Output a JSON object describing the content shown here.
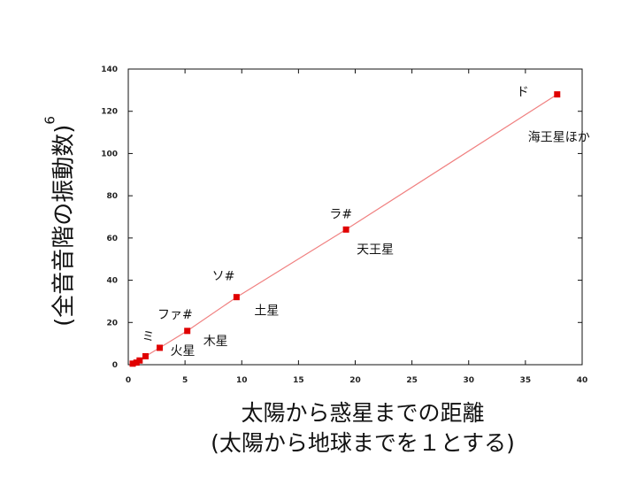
{
  "chart_data": {
    "type": "scatter",
    "xlabel_line1": "太陽から惑星までの距離",
    "xlabel_line2": "(太陽から地球までを１とする)",
    "ylabel": "(全音音階の振動数)",
    "ylabel_superscript": "6",
    "xlim": [
      0,
      40
    ],
    "ylim": [
      0,
      140
    ],
    "x_ticks": [
      0,
      5,
      10,
      15,
      20,
      25,
      30,
      35,
      40
    ],
    "y_ticks": [
      0,
      20,
      40,
      60,
      80,
      100,
      120,
      140
    ],
    "grid": false,
    "line_color": "#f08080",
    "marker_color": "#e00000",
    "series": [
      {
        "x": [
          0.39,
          0.72,
          1.0,
          1.52,
          2.77,
          5.2,
          9.54,
          19.19,
          37.8
        ],
        "y": [
          0.5,
          1.0,
          2.0,
          4.0,
          8.0,
          16.0,
          32.0,
          64.0,
          128.0
        ]
      }
    ],
    "annotations": [
      {
        "text": "ミ",
        "x": 2.77,
        "y": 8,
        "anchor": "end",
        "dx": -6,
        "dy": -8
      },
      {
        "text": "火星",
        "x": 2.77,
        "y": 8,
        "anchor": "start",
        "dx": 12,
        "dy": 8
      },
      {
        "text": "ファ#",
        "x": 5.2,
        "y": 16,
        "anchor": "end",
        "dx": 6,
        "dy": -14
      },
      {
        "text": "木星",
        "x": 5.2,
        "y": 16,
        "anchor": "start",
        "dx": 18,
        "dy": 16
      },
      {
        "text": "ソ#",
        "x": 9.54,
        "y": 32,
        "anchor": "end",
        "dx": -2,
        "dy": -19
      },
      {
        "text": "土星",
        "x": 9.54,
        "y": 32,
        "anchor": "start",
        "dx": 20,
        "dy": 20
      },
      {
        "text": "ラ#",
        "x": 19.19,
        "y": 64,
        "anchor": "end",
        "dx": 7,
        "dy": -13
      },
      {
        "text": "天王星",
        "x": 19.19,
        "y": 64,
        "anchor": "start",
        "dx": 12,
        "dy": 27
      },
      {
        "text": "ド",
        "x": 37.8,
        "y": 128,
        "anchor": "end",
        "dx": -32,
        "dy": 2
      },
      {
        "text": "海王星ほか",
        "x": 37.8,
        "y": 128,
        "anchor": "start",
        "dx": -33,
        "dy": 53
      }
    ]
  }
}
